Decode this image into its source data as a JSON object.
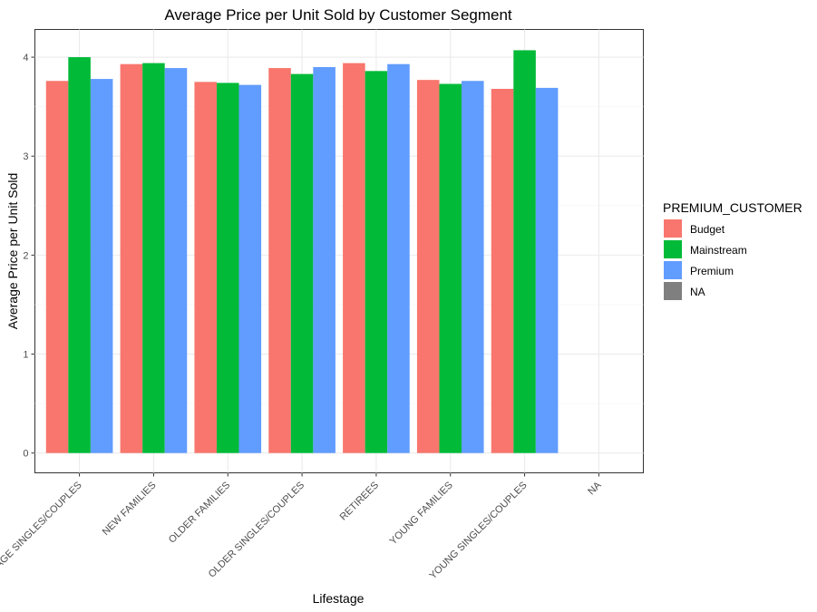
{
  "chart_data": {
    "type": "bar",
    "title": "Average Price per Unit Sold by Customer Segment",
    "xlabel": "Lifestage",
    "ylabel": "Average Price per Unit Sold",
    "ylim": [
      -0.2,
      4.28
    ],
    "yticks": [
      0,
      1,
      2,
      3,
      4
    ],
    "grid": true,
    "legend_position": "right",
    "categories": [
      "MIDAGE SINGLES/COUPLES",
      "NEW FAMILIES",
      "OLDER FAMILIES",
      "OLDER SINGLES/COUPLES",
      "RETIREES",
      "YOUNG FAMILIES",
      "YOUNG SINGLES/COUPLES",
      "NA"
    ],
    "series": [
      {
        "name": "Budget",
        "color": "#F8766D",
        "values": [
          3.76,
          3.93,
          3.75,
          3.89,
          3.94,
          3.77,
          3.68,
          null
        ]
      },
      {
        "name": "Mainstream",
        "color": "#00BA38",
        "values": [
          4.0,
          3.94,
          3.74,
          3.83,
          3.86,
          3.73,
          4.07,
          null
        ]
      },
      {
        "name": "Premium",
        "color": "#619CFF",
        "values": [
          3.78,
          3.89,
          3.72,
          3.9,
          3.93,
          3.76,
          3.69,
          null
        ]
      }
    ],
    "legend": {
      "title": "PREMIUM_CUSTOMER",
      "items": [
        {
          "label": "Budget",
          "color": "#F8766D"
        },
        {
          "label": "Mainstream",
          "color": "#00BA38"
        },
        {
          "label": "Premium",
          "color": "#619CFF"
        },
        {
          "label": "NA",
          "color": "#7F7F7F"
        }
      ]
    }
  }
}
